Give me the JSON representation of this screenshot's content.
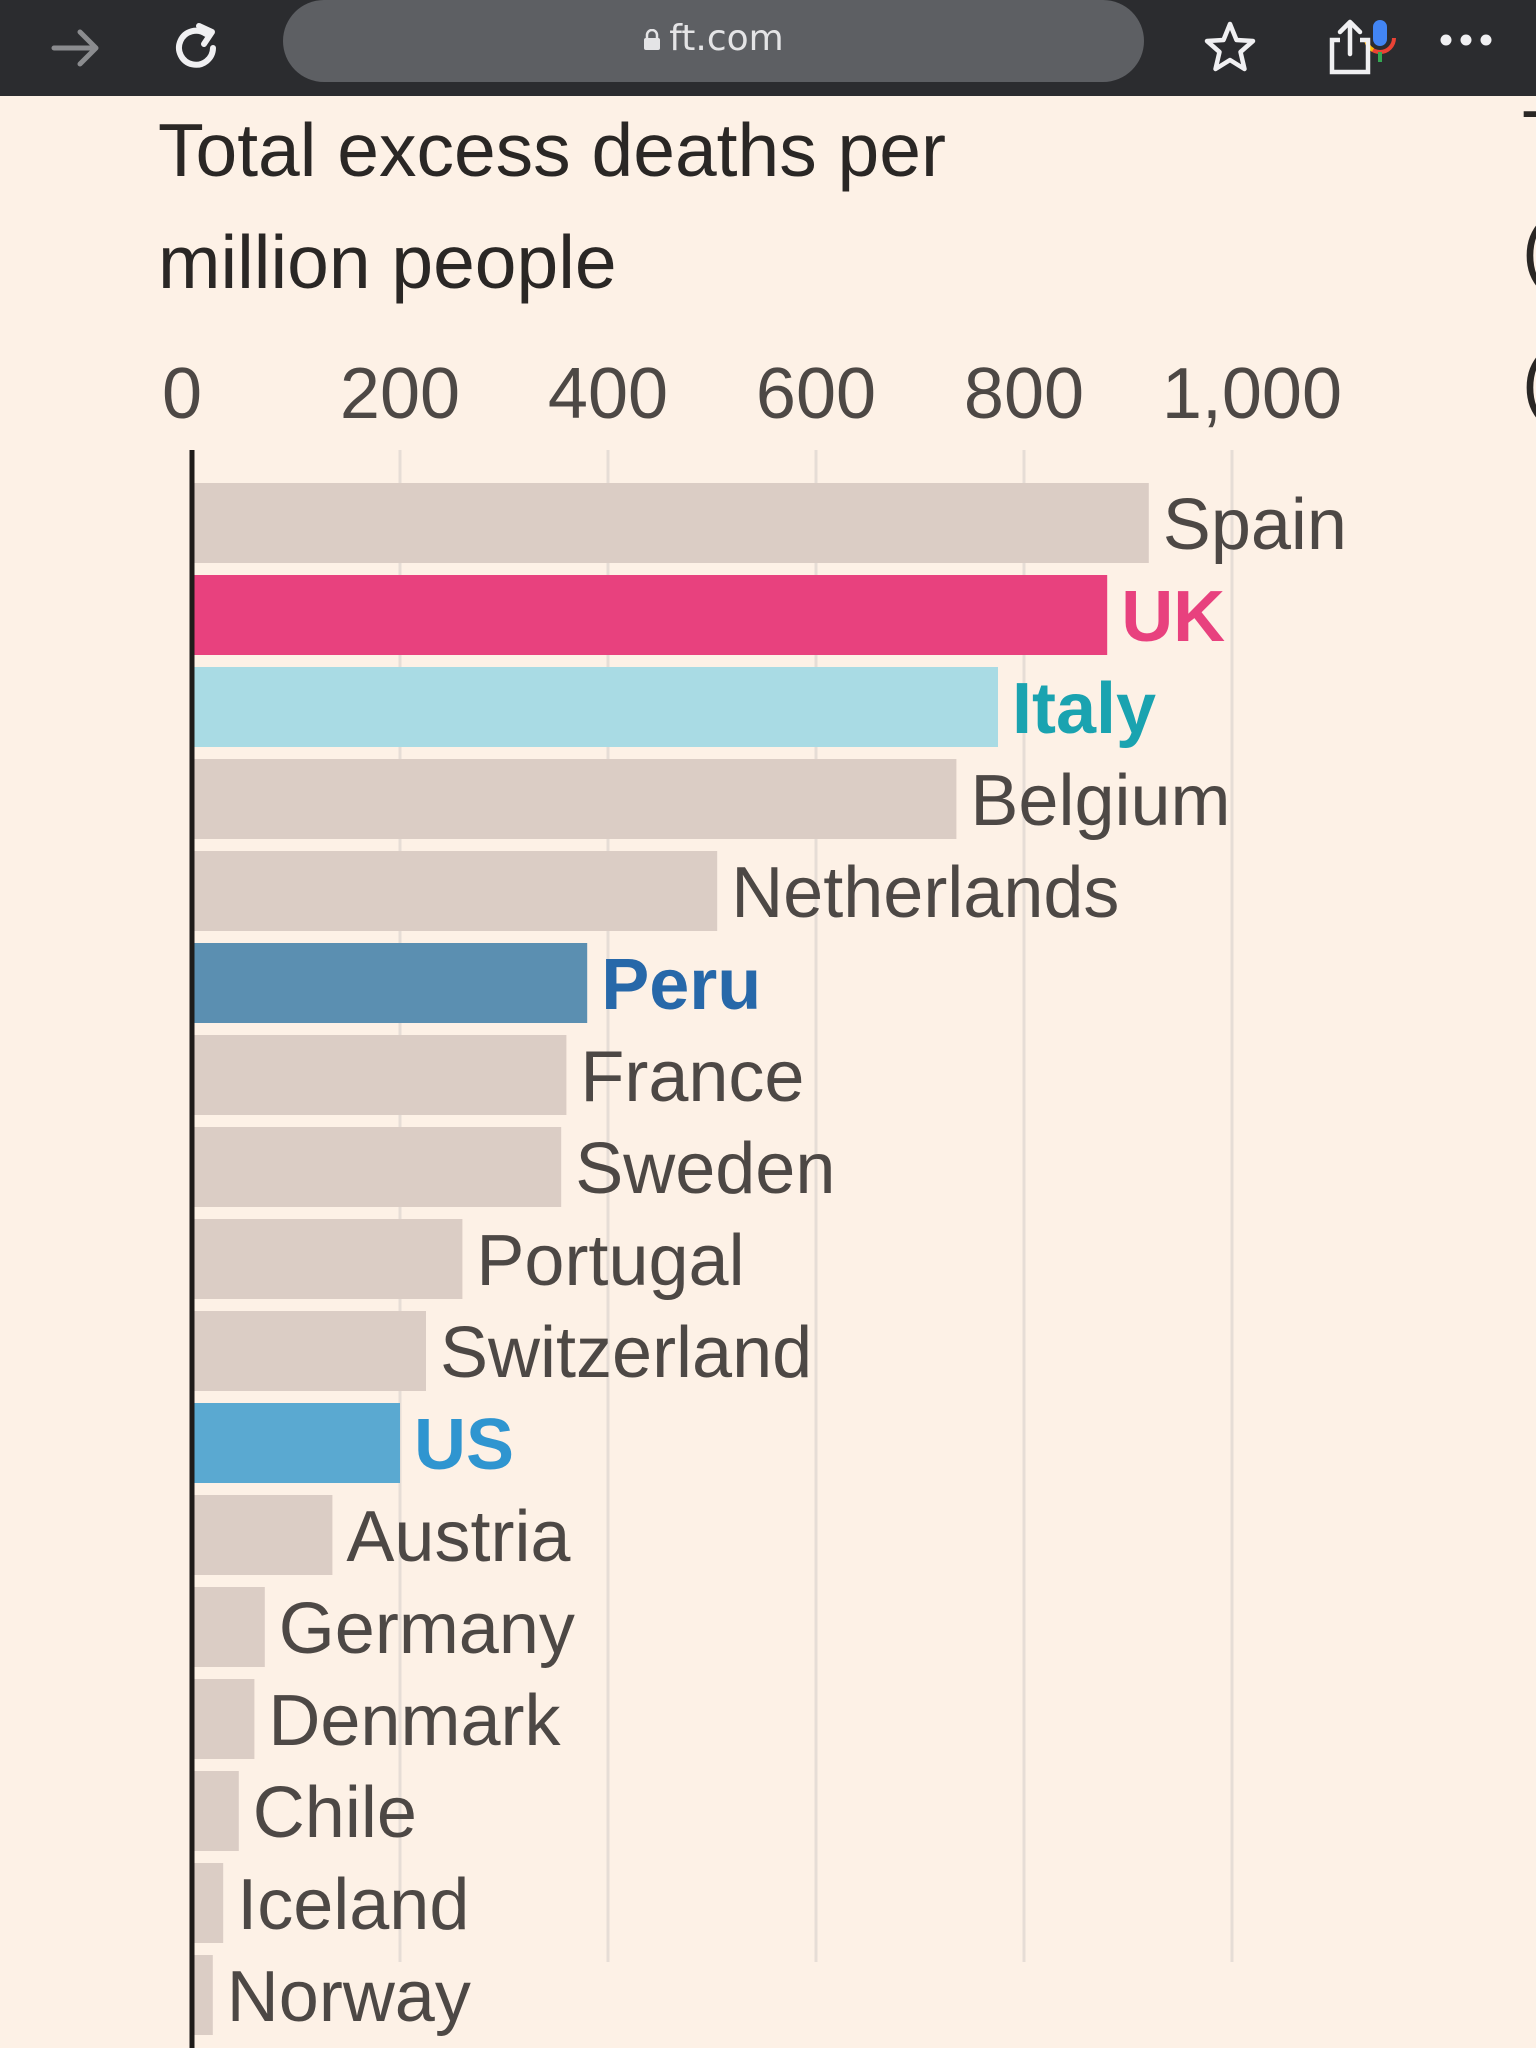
{
  "browser": {
    "url": "ft.com",
    "icons": [
      "forward-arrow-icon",
      "reload-icon",
      "lock-icon",
      "mic-icon",
      "star-icon",
      "share-icon",
      "more-icon"
    ]
  },
  "right_edge_glyphs": [
    "T",
    "(",
    "("
  ],
  "chart_data": {
    "type": "bar",
    "orientation": "horizontal",
    "title": "Total excess deaths per million people",
    "title_lines": [
      "Total excess deaths per",
      "million people"
    ],
    "xlabel": "",
    "ylabel": "",
    "xlim": [
      0,
      1000
    ],
    "x_ticks": [
      0,
      200,
      400,
      600,
      800,
      1000
    ],
    "x_tick_labels": [
      "0",
      "200",
      "400",
      "600",
      "800",
      "1,000"
    ],
    "grid": "vertical",
    "categories": [
      "Spain",
      "UK",
      "Italy",
      "Belgium",
      "Netherlands",
      "Peru",
      "France",
      "Sweden",
      "Portugal",
      "Switzerland",
      "US",
      "Austria",
      "Germany",
      "Denmark",
      "Chile",
      "Iceland",
      "Norway"
    ],
    "values": [
      920,
      880,
      775,
      735,
      505,
      380,
      360,
      355,
      260,
      225,
      200,
      135,
      70,
      60,
      45,
      30,
      20
    ],
    "highlight": {
      "UK": {
        "bar": "#e8417e",
        "label": "#e8417e"
      },
      "Italy": {
        "bar": "#a9dbe4",
        "label": "#1aa3b0"
      },
      "Peru": {
        "bar": "#5b8fb1",
        "label": "#2768a9"
      },
      "US": {
        "bar": "#5aa9d1",
        "label": "#2f95d0"
      }
    },
    "default_bar_color": "#dbcdc5",
    "default_label_color": "#4d4845",
    "axis_color": "#1f1c1a",
    "grid_color": "#e6ddd6"
  }
}
